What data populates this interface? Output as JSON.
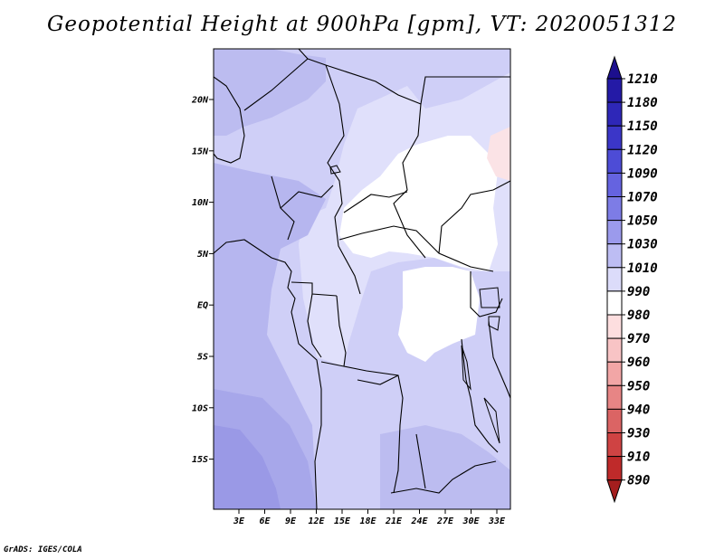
{
  "title": "Geopotential Height at 900hPa [gpm], VT: 2020051312",
  "credit": "GrADS: IGES/COLA",
  "map": {
    "lat_ticks": [
      "20N",
      "15N",
      "10N",
      "5N",
      "EQ",
      "5S",
      "10S",
      "15S"
    ],
    "lon_ticks": [
      "3E",
      "6E",
      "9E",
      "12E",
      "15E",
      "18E",
      "21E",
      "24E",
      "27E",
      "30E",
      "33E"
    ]
  },
  "colorbar": {
    "labels": [
      "1210",
      "1180",
      "1150",
      "1120",
      "1090",
      "1070",
      "1050",
      "1030",
      "1010",
      "990",
      "980",
      "970",
      "960",
      "950",
      "940",
      "930",
      "910",
      "890"
    ],
    "colors": [
      "#1c0f8e",
      "#241aa6",
      "#2e27b8",
      "#3b36c8",
      "#4d4cd6",
      "#6563e0",
      "#7d7ce6",
      "#9b9aec",
      "#bdbdf3",
      "#dcdcfa",
      "#ffffff",
      "#fddedf",
      "#f8c4c5",
      "#f2a6a6",
      "#e78585",
      "#db6464",
      "#cf4343",
      "#bf2a2a",
      "#a41e1e"
    ]
  }
}
